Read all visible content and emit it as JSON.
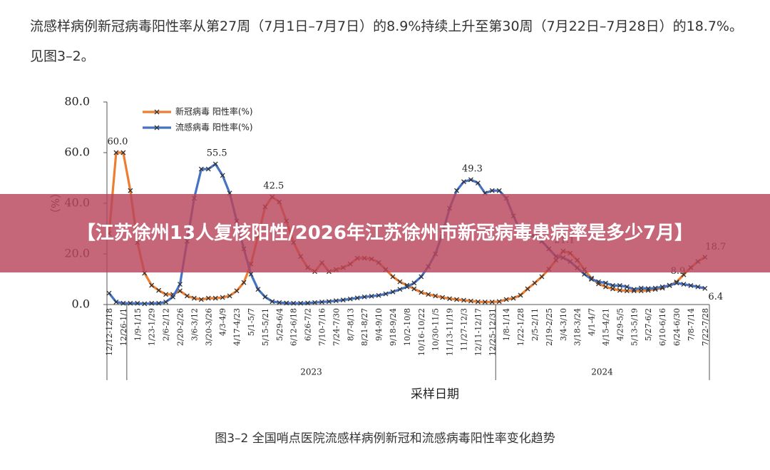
{
  "paragraph": "流感样病例新冠病毒阳性率从第27周（7月1日–7月7日）的8.9%持续上升至第30周（7月22日–7月28日）的18.7%。见图3–2。",
  "chart_data": {
    "type": "line",
    "ylabel": "（%）",
    "xlabel": "采样日期",
    "ylim": [
      0,
      80
    ],
    "yticks": [
      {
        "value": 0,
        "label": "0.0"
      },
      {
        "value": 20,
        "label": "20.0"
      },
      {
        "value": 40,
        "label": "40.0"
      },
      {
        "value": 60,
        "label": "60.0"
      },
      {
        "value": 80,
        "label": "80.0"
      }
    ],
    "grid": false,
    "legend": "top-left",
    "categories": [
      "12/12-12/18",
      null,
      "12/26-1/1",
      null,
      "1/9-1/15",
      null,
      "1/23-1/29",
      null,
      "2/6-2/12",
      null,
      "2/20-2/26",
      null,
      "3/6-3/12",
      null,
      "3/20-3/26",
      null,
      "4/3-4/9",
      null,
      "4/17-4/23",
      null,
      "5/1-5/7",
      null,
      "5/15-5/21",
      null,
      "5/29-6/4",
      null,
      "6/12-6/18",
      null,
      "6/26-7/2",
      null,
      "7/10-7/16",
      null,
      "7/24-7/30",
      null,
      "8/7-8/13",
      null,
      "8/21-8/27",
      null,
      "9/4-9/10",
      null,
      "9/18-9/24",
      null,
      "10/2-10/8",
      null,
      "10/16-10/22",
      null,
      "10/30-11/5",
      null,
      "11/13-11/19",
      null,
      "11/27-12/3",
      null,
      "12/11-12/17",
      null,
      "12/25-12/31",
      null,
      "1/8-1/14",
      null,
      "1/22-1/28",
      null,
      "2/5-2/11",
      null,
      "2/19-2/25",
      null,
      "3/4-3/10",
      null,
      "3/18-3/24",
      null,
      "4/1-4/7",
      null,
      "4/15-4/21",
      null,
      "4/29-5/5",
      null,
      "5/13-5/19",
      null,
      "5/27-6/2",
      null,
      "6/10-6/16",
      null,
      "6/24-6/30",
      null,
      "7/8-7/14",
      null,
      "7/22-7/28"
    ],
    "groups": [
      {
        "label": "2023",
        "from": 3,
        "to": 54
      },
      {
        "label": "2024",
        "from": 55,
        "to": 84
      }
    ],
    "series": [
      {
        "name": "新冠病毒 阳性率(%)",
        "color": "#ed7d31",
        "values": [
          28,
          60,
          60,
          45,
          24.5,
          12.4,
          7.6,
          5.6,
          4,
          4,
          5.4,
          3.4,
          2.5,
          2,
          2.5,
          2.5,
          2.8,
          3.4,
          5.4,
          8.7,
          16,
          27,
          38.6,
          42.5,
          40.5,
          33,
          24.5,
          19,
          14.6,
          13,
          16.5,
          13,
          13.8,
          14.6,
          16,
          18.3,
          18.3,
          18,
          16.6,
          13.8,
          11,
          9,
          7.6,
          6.2,
          4.8,
          4,
          3.4,
          2.8,
          2.3,
          2,
          1.7,
          1.4,
          1.1,
          1,
          1,
          1.2,
          2,
          2.5,
          3.7,
          6.2,
          8.5,
          11,
          14,
          17.5,
          21.1,
          20.3,
          17.5,
          13.8,
          10.4,
          8.2,
          7,
          6.2,
          5.6,
          5.4,
          5.4,
          5.4,
          5.6,
          6,
          6.5,
          7.6,
          8.9,
          11.8,
          14.6,
          17,
          18.7
        ],
        "value_labels": [
          null,
          "60.0",
          null,
          null,
          null,
          null,
          null,
          null,
          null,
          null,
          null,
          null,
          null,
          null,
          null,
          null,
          null,
          null,
          null,
          null,
          null,
          null,
          null,
          "42.5",
          null,
          null,
          null,
          null,
          null,
          null,
          null,
          null,
          null,
          null,
          null,
          null,
          null,
          null,
          null,
          null,
          null,
          null,
          null,
          null,
          null,
          null,
          null,
          null,
          null,
          null,
          null,
          null,
          null,
          null,
          null,
          null,
          null,
          null,
          null,
          null,
          null,
          null,
          null,
          null,
          "21.1",
          null,
          null,
          null,
          null,
          null,
          null,
          null,
          null,
          null,
          null,
          null,
          null,
          null,
          null,
          null,
          "8.9",
          null,
          null,
          null,
          "18.7"
        ]
      },
      {
        "name": "流感病毒 阳性率(%)",
        "color": "#4472c4",
        "values": [
          4.5,
          1,
          0.5,
          0.5,
          0.5,
          0.3,
          0.5,
          0.5,
          1,
          3,
          8,
          25,
          42,
          53.5,
          53.5,
          55.5,
          51,
          44,
          33,
          22,
          12,
          6,
          3,
          1.2,
          0.8,
          0.6,
          0.5,
          0.5,
          0.6,
          0.8,
          1,
          1.2,
          1.5,
          1.8,
          2.2,
          2.6,
          3,
          3.3,
          3.6,
          4.2,
          5,
          6,
          7,
          8.5,
          11,
          15,
          20,
          28,
          38,
          45,
          48.5,
          49.3,
          48,
          44,
          45,
          45,
          42,
          35,
          29,
          27.5,
          27,
          25,
          22,
          19,
          18.5,
          17,
          14.5,
          12,
          10,
          9,
          8.5,
          7.5,
          7.5,
          7,
          6,
          6.5,
          6.3,
          6.5,
          7,
          7.5,
          8.5,
          8,
          7.5,
          7,
          6.4
        ],
        "value_labels": [
          null,
          null,
          null,
          null,
          null,
          null,
          null,
          null,
          null,
          null,
          null,
          null,
          null,
          null,
          null,
          "55.5",
          null,
          null,
          null,
          null,
          null,
          null,
          null,
          null,
          null,
          null,
          null,
          null,
          null,
          null,
          null,
          null,
          null,
          null,
          null,
          null,
          null,
          null,
          null,
          null,
          null,
          null,
          null,
          null,
          null,
          null,
          null,
          null,
          null,
          null,
          null,
          "49.3",
          null,
          null,
          null,
          null,
          null,
          null,
          null,
          null,
          null,
          null,
          null,
          null,
          null,
          null,
          null,
          null,
          null,
          null,
          null,
          null,
          null,
          null,
          null,
          null,
          null,
          null,
          null,
          null,
          null,
          null,
          null,
          null,
          "6.4"
        ]
      }
    ]
  },
  "caption": "图3–2 全国哨点医院流感样病例新冠和流感病毒阳性率变化趋势",
  "banner": "【江苏徐州13人复核阳性/2026年江苏徐州市新冠病毒患病率是多少7月】"
}
